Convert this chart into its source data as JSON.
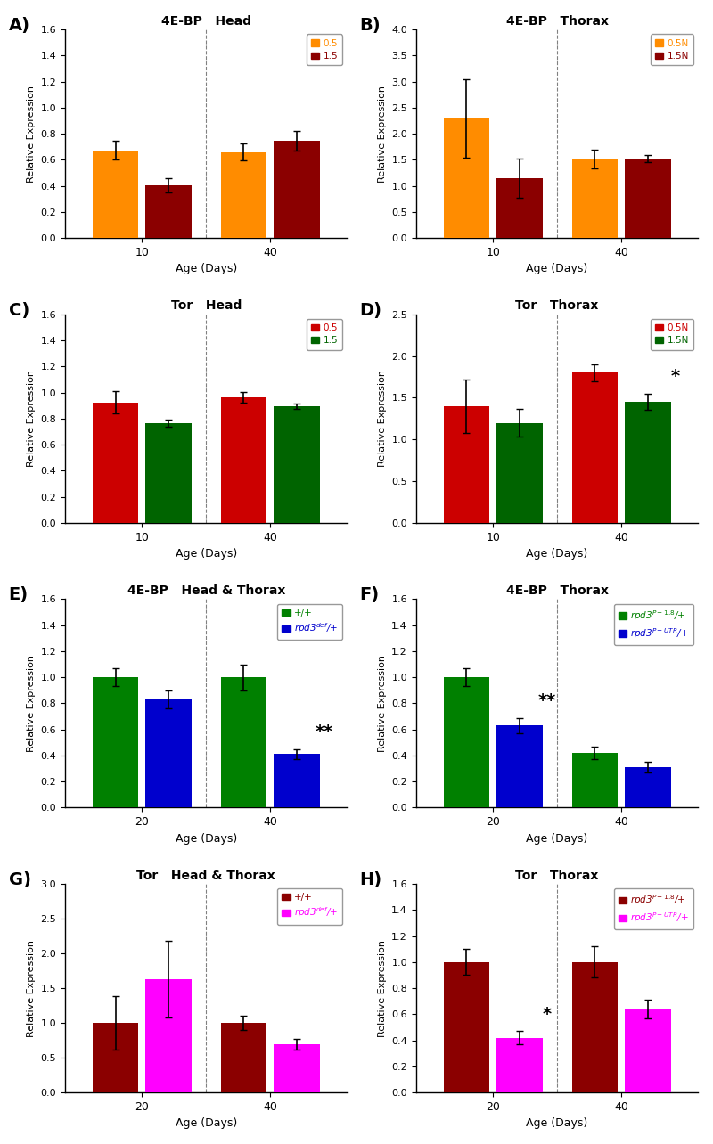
{
  "panels": {
    "A": {
      "title_parts": [
        "4E-BP",
        "Head"
      ],
      "ylabel": "Relative Expression",
      "xlabel": "Age (Days)",
      "ylim": [
        0,
        1.6
      ],
      "yticks": [
        0,
        0.2,
        0.4,
        0.6,
        0.8,
        1.0,
        1.2,
        1.4,
        1.6
      ],
      "age_labels": [
        "10",
        "40"
      ],
      "bar1_color": "#FF8C00",
      "bar2_color": "#8B0000",
      "legend_labels": [
        "0.5",
        "1.5"
      ],
      "legend_colors": [
        "#FF8C00",
        "#8B0000"
      ],
      "values": [
        [
          0.675,
          0.405
        ],
        [
          0.66,
          0.745
        ]
      ],
      "errors": [
        [
          0.07,
          0.055
        ],
        [
          0.065,
          0.075
        ]
      ]
    },
    "B": {
      "title_parts": [
        "4E-BP",
        "Thorax"
      ],
      "ylabel": "Relative Expression",
      "xlabel": "Age (Days)",
      "ylim": [
        0,
        4.0
      ],
      "yticks": [
        0,
        0.5,
        1.0,
        1.5,
        2.0,
        2.5,
        3.0,
        3.5,
        4.0
      ],
      "age_labels": [
        "10",
        "40"
      ],
      "bar1_color": "#FF8C00",
      "bar2_color": "#8B0000",
      "legend_labels": [
        "0.5N",
        "1.5N"
      ],
      "legend_colors": [
        "#FF8C00",
        "#8B0000"
      ],
      "values": [
        [
          2.3,
          1.15
        ],
        [
          1.52,
          1.52
        ]
      ],
      "errors": [
        [
          0.75,
          0.38
        ],
        [
          0.18,
          0.07
        ]
      ]
    },
    "C": {
      "title_parts": [
        "Tor",
        "Head"
      ],
      "ylabel": "Relative Expression",
      "xlabel": "Age (Days)",
      "ylim": [
        0,
        1.6
      ],
      "yticks": [
        0,
        0.2,
        0.4,
        0.6,
        0.8,
        1.0,
        1.2,
        1.4,
        1.6
      ],
      "age_labels": [
        "10",
        "40"
      ],
      "bar1_color": "#CC0000",
      "bar2_color": "#006400",
      "legend_labels": [
        "0.5",
        "1.5"
      ],
      "legend_colors": [
        "#CC0000",
        "#006400"
      ],
      "values": [
        [
          0.925,
          0.765
        ],
        [
          0.965,
          0.895
        ]
      ],
      "errors": [
        [
          0.085,
          0.025
        ],
        [
          0.04,
          0.02
        ]
      ]
    },
    "D": {
      "title_parts": [
        "Tor",
        "Thorax"
      ],
      "ylabel": "Relative Expression",
      "xlabel": "Age (Days)",
      "ylim": [
        0,
        2.5
      ],
      "yticks": [
        0,
        0.5,
        1.0,
        1.5,
        2.0,
        2.5
      ],
      "age_labels": [
        "10",
        "40"
      ],
      "bar1_color": "#CC0000",
      "bar2_color": "#006400",
      "legend_labels": [
        "0.5N",
        "1.5N"
      ],
      "legend_colors": [
        "#CC0000",
        "#006400"
      ],
      "values": [
        [
          1.4,
          1.2
        ],
        [
          1.8,
          1.45
        ]
      ],
      "errors": [
        [
          0.32,
          0.17
        ],
        [
          0.1,
          0.1
        ]
      ],
      "star": "*",
      "star_group": 1,
      "star_bar": 1
    },
    "E": {
      "title_parts": [
        "4E-BP",
        "Head & Thorax"
      ],
      "ylabel": "Relative Expression",
      "xlabel": "Age (Days)",
      "ylim": [
        0,
        1.6
      ],
      "yticks": [
        0,
        0.2,
        0.4,
        0.6,
        0.8,
        1.0,
        1.2,
        1.4,
        1.6
      ],
      "age_labels": [
        "20",
        "40"
      ],
      "bar1_color": "#008000",
      "bar2_color": "#0000CD",
      "legend_labels": [
        "+/+",
        "rpd3$^{def}$/+"
      ],
      "legend_colors": [
        "#008000",
        "#0000CD"
      ],
      "legend_italic": [
        false,
        true
      ],
      "values": [
        [
          1.0,
          0.83
        ],
        [
          1.0,
          0.41
        ]
      ],
      "errors": [
        [
          0.07,
          0.07
        ],
        [
          0.1,
          0.04
        ]
      ],
      "star": "**",
      "star_group": 1,
      "star_bar": 1
    },
    "F": {
      "title_parts": [
        "4E-BP",
        "Thorax"
      ],
      "ylabel": "Relative Expression",
      "xlabel": "Age (Days)",
      "ylim": [
        0,
        1.6
      ],
      "yticks": [
        0,
        0.2,
        0.4,
        0.6,
        0.8,
        1.0,
        1.2,
        1.4,
        1.6
      ],
      "age_labels": [
        "20",
        "40"
      ],
      "bar1_color": "#008000",
      "bar2_color": "#0000CD",
      "legend_labels": [
        "rpd3$^{P-1.8}$/+",
        "rpd3$^{P-UTR}$/+"
      ],
      "legend_colors": [
        "#008000",
        "#0000CD"
      ],
      "legend_italic": [
        true,
        true
      ],
      "values": [
        [
          1.0,
          0.63
        ],
        [
          0.42,
          0.31
        ]
      ],
      "errors": [
        [
          0.07,
          0.06
        ],
        [
          0.05,
          0.04
        ]
      ],
      "star": "**",
      "star_group": 0,
      "star_bar": 1
    },
    "G": {
      "title_parts": [
        "Tor",
        "Head & Thorax"
      ],
      "ylabel": "Relative Expression",
      "xlabel": "Age (Days)",
      "ylim": [
        0,
        3.0
      ],
      "yticks": [
        0,
        0.5,
        1.0,
        1.5,
        2.0,
        2.5,
        3.0
      ],
      "age_labels": [
        "20",
        "40"
      ],
      "bar1_color": "#8B0000",
      "bar2_color": "#FF00FF",
      "legend_labels": [
        "+/+",
        "rpd3$^{def}$/+"
      ],
      "legend_colors": [
        "#8B0000",
        "#FF00FF"
      ],
      "legend_italic": [
        false,
        true
      ],
      "values": [
        [
          1.0,
          1.63
        ],
        [
          1.0,
          0.69
        ]
      ],
      "errors": [
        [
          0.38,
          0.55
        ],
        [
          0.1,
          0.08
        ]
      ]
    },
    "H": {
      "title_parts": [
        "Tor",
        "Thorax"
      ],
      "ylabel": "Relative Expression",
      "xlabel": "Age (Days)",
      "ylim": [
        0,
        1.6
      ],
      "yticks": [
        0,
        0.2,
        0.4,
        0.6,
        0.8,
        1.0,
        1.2,
        1.4,
        1.6
      ],
      "age_labels": [
        "20",
        "40"
      ],
      "bar1_color": "#8B0000",
      "bar2_color": "#FF00FF",
      "legend_labels": [
        "rpd3$^{P-1.8}$/+",
        "rpd3$^{P-UTR}$/+"
      ],
      "legend_colors": [
        "#8B0000",
        "#FF00FF"
      ],
      "legend_italic": [
        true,
        true
      ],
      "values": [
        [
          1.0,
          0.42
        ],
        [
          1.0,
          0.64
        ]
      ],
      "errors": [
        [
          0.1,
          0.05
        ],
        [
          0.12,
          0.07
        ]
      ],
      "star": "*",
      "star_group": 0,
      "star_bar": 1
    }
  },
  "panel_order": [
    "A",
    "B",
    "C",
    "D",
    "E",
    "F",
    "G",
    "H"
  ],
  "background_color": "#FFFFFF"
}
